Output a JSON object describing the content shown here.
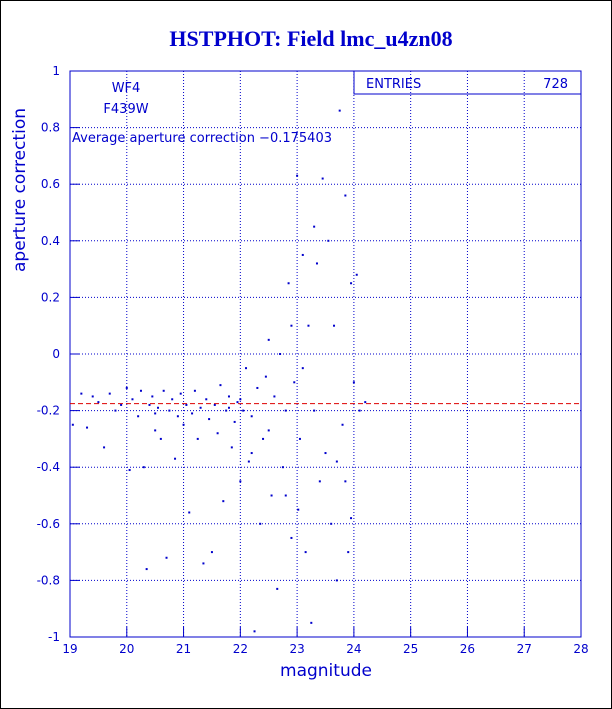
{
  "chart_data": {
    "type": "scatter",
    "title": "HSTPHOT: Field lmc_u4zn08",
    "x_label": "magnitude",
    "y_label": "aperture correction",
    "annotations": [
      "WF4",
      "F439W",
      "Average aperture correction −0.175403"
    ],
    "stats": {
      "label": "ENTRIES",
      "value": "728"
    },
    "reference_line": {
      "value": -0.175403,
      "color": "#dd0000"
    },
    "color": "#0000cc",
    "grid": true,
    "xlim": [
      19,
      28
    ],
    "ylim": [
      -1,
      1
    ],
    "xticks": [
      19,
      20,
      21,
      22,
      23,
      24,
      25,
      26,
      27,
      28
    ],
    "yticks": [
      -1,
      -0.8,
      -0.6,
      -0.4,
      -0.2,
      0,
      0.2,
      0.4,
      0.6,
      0.8,
      1
    ],
    "x": [
      19.05,
      19.2,
      19.3,
      19.4,
      19.5,
      19.6,
      19.7,
      19.8,
      19.9,
      20.0,
      20.05,
      20.1,
      20.2,
      20.25,
      20.3,
      20.35,
      20.4,
      20.45,
      20.5,
      20.55,
      20.6,
      20.65,
      20.7,
      20.75,
      20.8,
      20.85,
      20.9,
      20.95,
      21.0,
      21.05,
      21.1,
      21.15,
      21.2,
      21.25,
      21.3,
      21.35,
      21.4,
      21.45,
      21.5,
      21.55,
      21.6,
      21.65,
      21.7,
      21.75,
      21.8,
      21.85,
      21.9,
      21.95,
      22.0,
      22.05,
      22.1,
      22.15,
      22.2,
      22.25,
      22.3,
      22.35,
      22.4,
      22.45,
      22.5,
      22.55,
      22.6,
      22.65,
      22.7,
      22.75,
      22.8,
      22.85,
      22.9,
      22.95,
      23.0,
      23.02,
      23.05,
      23.1,
      23.15,
      23.2,
      23.25,
      23.3,
      23.35,
      23.4,
      23.45,
      23.5,
      23.55,
      23.6,
      23.65,
      23.7,
      23.75,
      23.8,
      23.85,
      23.9,
      23.95,
      24.0,
      24.05,
      24.1,
      24.2,
      22.5,
      22.9,
      23.1,
      23.3,
      20.5,
      21.8,
      22.0,
      23.7,
      23.85,
      23.95,
      22.2,
      22.8
    ],
    "values": [
      -0.25,
      -0.14,
      -0.26,
      -0.15,
      -0.17,
      -0.33,
      -0.14,
      -0.2,
      -0.18,
      -0.12,
      -0.41,
      -0.16,
      -0.22,
      -0.13,
      -0.4,
      -0.76,
      -0.18,
      -0.15,
      -0.27,
      -0.19,
      -0.3,
      -0.13,
      -0.72,
      -0.2,
      -0.16,
      -0.37,
      -0.22,
      -0.14,
      -0.25,
      -0.18,
      -0.56,
      -0.21,
      -0.13,
      -0.3,
      -0.19,
      -0.74,
      -0.16,
      -0.23,
      -0.7,
      -0.18,
      -0.28,
      -0.11,
      -0.52,
      -0.2,
      -0.15,
      -0.33,
      -0.24,
      -0.17,
      -0.45,
      -0.2,
      -0.05,
      -0.38,
      -0.22,
      -0.98,
      -0.12,
      -0.6,
      -0.3,
      -0.08,
      -0.27,
      -0.5,
      -0.15,
      -0.83,
      0.0,
      -0.4,
      -0.2,
      0.25,
      -0.65,
      -0.1,
      0.63,
      -0.55,
      -0.3,
      -0.05,
      -0.7,
      0.1,
      -0.95,
      -0.2,
      0.32,
      -0.45,
      0.62,
      -0.35,
      0.4,
      -0.6,
      0.1,
      -0.8,
      0.86,
      -0.25,
      0.56,
      -0.7,
      0.25,
      -0.1,
      0.28,
      -0.2,
      -0.17,
      0.05,
      0.1,
      0.35,
      0.45,
      -0.21,
      -0.19,
      -0.16,
      -0.38,
      -0.45,
      -0.58,
      -0.35,
      -0.5
    ]
  }
}
